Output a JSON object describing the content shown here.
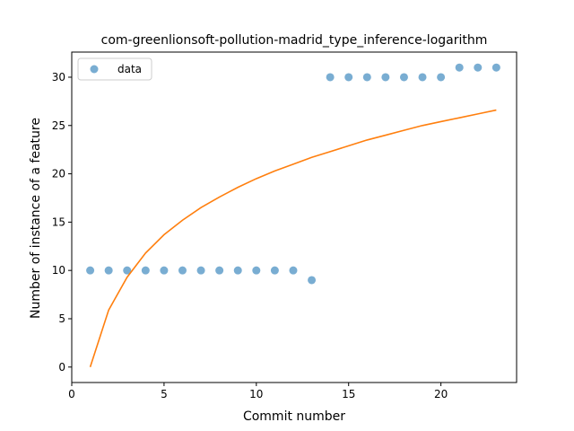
{
  "chart_data": {
    "type": "scatter",
    "title": "com-greenlionsoft-pollution-madrid_type_inference-logarithm",
    "xlabel": "Commit number",
    "ylabel": "Number of instance of a feature",
    "xlim": [
      0,
      24.1
    ],
    "ylim": [
      -1.6,
      32.6
    ],
    "xticks": [
      0,
      5,
      10,
      15,
      20
    ],
    "yticks": [
      0,
      5,
      10,
      15,
      20,
      25,
      30
    ],
    "legend": {
      "placement": "top-left",
      "entries": [
        "data"
      ]
    },
    "series": [
      {
        "name": "data",
        "kind": "scatter",
        "color": "#1f77b4",
        "x": [
          1,
          2,
          3,
          4,
          5,
          6,
          7,
          8,
          9,
          10,
          11,
          12,
          13,
          14,
          15,
          16,
          17,
          18,
          19,
          20,
          21,
          22,
          23
        ],
        "y": [
          10,
          10,
          10,
          10,
          10,
          10,
          10,
          10,
          10,
          10,
          10,
          10,
          9,
          30,
          30,
          30,
          30,
          30,
          30,
          30,
          31,
          31,
          31
        ]
      },
      {
        "kind": "line",
        "color": "#ff7f0e",
        "x": [
          1,
          2,
          3,
          4,
          5,
          6,
          7,
          8,
          9,
          10,
          11,
          12,
          13,
          14,
          15,
          16,
          17,
          18,
          19,
          20,
          21,
          22,
          23
        ],
        "y": [
          0,
          5.9,
          9.3,
          11.8,
          13.7,
          15.2,
          16.5,
          17.6,
          18.6,
          19.5,
          20.3,
          21.0,
          21.7,
          22.3,
          22.9,
          23.5,
          24.0,
          24.5,
          25.0,
          25.4,
          25.8,
          26.2,
          26.6
        ]
      }
    ]
  }
}
